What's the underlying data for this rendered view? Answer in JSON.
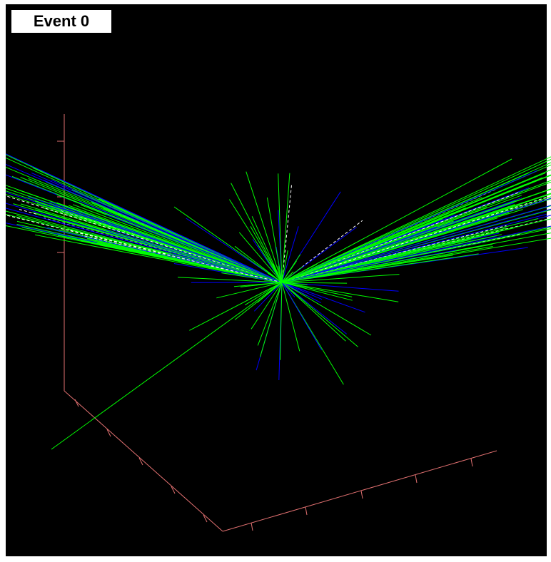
{
  "event_label": "Event 0"
}
